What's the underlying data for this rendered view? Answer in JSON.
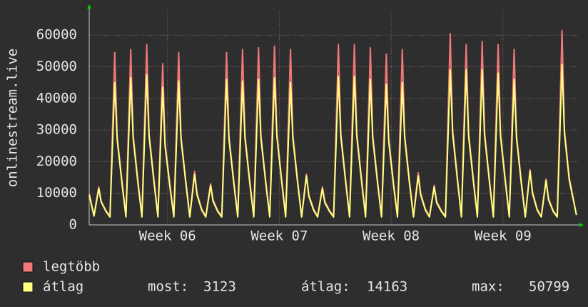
{
  "chart_data": {
    "type": "line",
    "y_label": "onlinestream.live",
    "x": [
      0,
      0.3,
      0.6,
      0.75,
      1.05,
      1.3,
      1.6,
      1.75,
      2.05,
      2.3,
      2.6,
      2.75,
      3.05,
      3.3,
      3.6,
      3.75,
      4.05,
      4.3,
      4.6,
      4.75,
      5.05,
      5.3,
      5.6,
      5.75,
      6.05,
      6.3,
      6.6,
      6.75,
      7.05,
      7.3,
      7.6,
      7.75,
      8.05,
      8.3,
      8.6,
      8.75,
      9.05,
      9.3,
      9.6,
      9.75,
      10.05,
      10.3,
      10.6,
      10.75,
      11.05,
      11.3,
      11.6,
      11.75,
      12.05,
      12.3,
      12.6,
      12.75,
      13.05,
      13.3,
      13.6,
      13.75,
      14.05,
      14.3,
      14.6,
      14.75,
      15.05,
      15.3,
      15.6,
      15.75,
      16.05,
      16.3,
      16.6,
      16.75,
      17.05,
      17.3,
      17.6,
      17.75,
      18.05,
      18.3,
      18.6,
      18.75,
      19.05,
      19.3,
      19.6,
      19.75,
      20.05,
      20.3,
      20.6,
      20.75,
      21.05,
      21.3,
      21.6,
      21.75,
      22.05,
      22.3,
      22.6,
      22.75,
      23.05,
      23.3,
      23.6,
      23.75,
      24.05,
      24.3,
      24.6,
      24.75,
      25.05,
      25.3,
      25.6,
      25.75,
      26.05,
      26.3,
      26.6,
      26.75,
      27.05,
      27.3,
      27.6,
      27.75,
      28.05,
      28.3,
      28.6,
      28.75,
      29.05,
      29.3,
      29.6,
      29.75,
      30.05,
      30.5
    ],
    "series": [
      {
        "name": "legtöbb",
        "color": "#f07878",
        "values": [
          10000,
          3000,
          12000,
          7500,
          4500,
          2800,
          54500,
          28000,
          14000,
          2800,
          55500,
          28500,
          14000,
          2800,
          57000,
          29000,
          14500,
          2800,
          51000,
          26000,
          13000,
          2800,
          54500,
          28000,
          14000,
          2800,
          17000,
          10000,
          5000,
          2800,
          13000,
          8000,
          4500,
          2800,
          54500,
          28000,
          14000,
          2800,
          55500,
          28500,
          14000,
          2800,
          56000,
          28500,
          14000,
          2800,
          56500,
          29000,
          14500,
          2800,
          55500,
          28500,
          14000,
          2800,
          16000,
          9500,
          5000,
          2800,
          12000,
          7500,
          4500,
          2800,
          57000,
          29000,
          14500,
          2800,
          57000,
          29000,
          14500,
          2800,
          56000,
          28500,
          14000,
          2800,
          54000,
          27500,
          13500,
          2800,
          55500,
          28500,
          14000,
          2800,
          16500,
          10000,
          5000,
          2800,
          12500,
          7500,
          4500,
          2800,
          60500,
          30000,
          15000,
          2800,
          57000,
          29000,
          14500,
          2800,
          58000,
          29500,
          14500,
          2800,
          57000,
          29000,
          14500,
          2800,
          55500,
          28500,
          14000,
          2800,
          17500,
          10500,
          5000,
          2800,
          14500,
          8500,
          4500,
          2800,
          61500,
          30000,
          15000,
          3200
        ]
      },
      {
        "name": "átlag",
        "color": "#ffff80",
        "values": [
          9500,
          2800,
          11500,
          7200,
          4300,
          2500,
          45000,
          27000,
          13200,
          2500,
          46500,
          27500,
          13200,
          2500,
          47500,
          28000,
          13700,
          2500,
          43500,
          25000,
          12200,
          2500,
          45500,
          27000,
          13200,
          2500,
          16000,
          9500,
          4600,
          2500,
          12500,
          7500,
          4200,
          2500,
          46000,
          27000,
          13200,
          2500,
          45500,
          27500,
          13200,
          2500,
          46000,
          27500,
          13200,
          2500,
          46500,
          28000,
          13700,
          2500,
          45000,
          27500,
          13200,
          2500,
          15500,
          9000,
          4600,
          2500,
          11500,
          7000,
          4200,
          2500,
          47000,
          28000,
          13700,
          2500,
          47000,
          28000,
          13700,
          2500,
          46000,
          27500,
          13200,
          2500,
          44500,
          26500,
          12700,
          2500,
          45000,
          27500,
          13200,
          2500,
          15500,
          9500,
          4600,
          2500,
          12000,
          7000,
          4200,
          2500,
          49000,
          29000,
          14200,
          2500,
          49000,
          28000,
          13700,
          2500,
          49000,
          28500,
          13700,
          2500,
          48000,
          28000,
          13700,
          2500,
          46000,
          27500,
          13200,
          2500,
          17000,
          10000,
          4600,
          2500,
          14000,
          8000,
          4200,
          2500,
          50799,
          29000,
          14200,
          3123
        ]
      }
    ],
    "stats": [
      {
        "label": "most:",
        "value": 3123
      },
      {
        "label": "átlag:",
        "value": 14163
      },
      {
        "label": "max:",
        "value": 50799
      }
    ],
    "xlim": [
      0,
      30.6
    ],
    "xticks": [
      {
        "value": 4.9,
        "label": "Week 06"
      },
      {
        "value": 11.9,
        "label": "Week 07"
      },
      {
        "value": 18.9,
        "label": "Week 08"
      },
      {
        "value": 25.9,
        "label": "Week 09"
      }
    ],
    "ylim": [
      0,
      67500
    ],
    "yticks": [
      0,
      10000,
      20000,
      30000,
      40000,
      50000,
      60000
    ],
    "grid": true
  }
}
